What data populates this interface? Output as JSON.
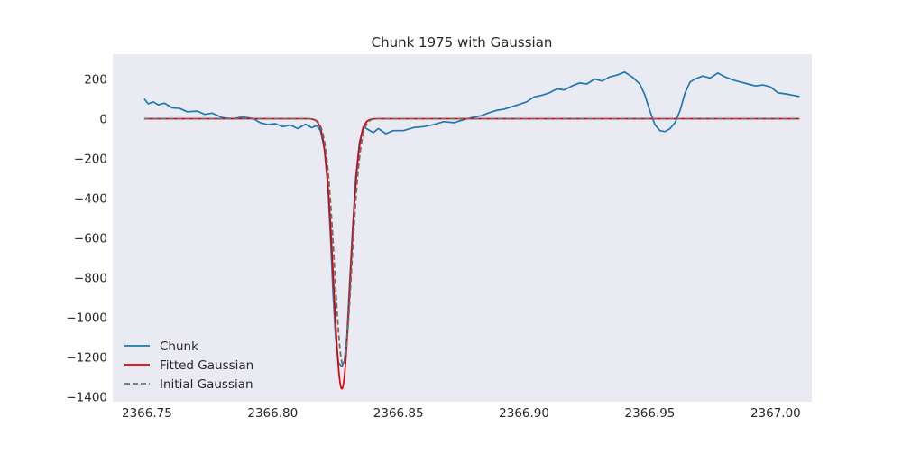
{
  "chart_data": {
    "type": "line",
    "title": "Chunk 1975 with Gaussian",
    "xlabel": "",
    "ylabel": "",
    "xlim": [
      2366.7364,
      2367.0144
    ],
    "ylim": [
      -1425,
      325
    ],
    "x_ticks": [
      2366.75,
      2366.8,
      2366.85,
      2366.9,
      2366.95,
      2367.0
    ],
    "x_tick_labels": [
      "2366.75",
      "2366.80",
      "2366.85",
      "2366.90",
      "2366.95",
      "2367.00"
    ],
    "y_ticks": [
      200,
      0,
      -200,
      -400,
      -600,
      -800,
      -1000,
      -1200,
      -1400
    ],
    "y_tick_labels": [
      "200",
      "0",
      "−200",
      "−400",
      "−600",
      "−800",
      "−1000",
      "−1200",
      "−1400"
    ],
    "grid": false,
    "legend_position": "lower-left",
    "colors": {
      "plot_background": "#eaeaf2",
      "chunk": "#1f77b4",
      "fitted": "#e00000",
      "initial": "#6f6f6f"
    },
    "series": [
      {
        "name": "Chunk",
        "style": "solid",
        "color": "#1f77b4",
        "points": [
          [
            2366.7489,
            100
          ],
          [
            2366.7505,
            75
          ],
          [
            2366.7525,
            85
          ],
          [
            2366.7545,
            70
          ],
          [
            2366.757,
            78
          ],
          [
            2366.76,
            55
          ],
          [
            2366.763,
            52
          ],
          [
            2366.766,
            35
          ],
          [
            2366.77,
            38
          ],
          [
            2366.773,
            22
          ],
          [
            2366.776,
            28
          ],
          [
            2366.78,
            5
          ],
          [
            2366.784,
            0
          ],
          [
            2366.788,
            8
          ],
          [
            2366.792,
            2
          ],
          [
            2366.795,
            -20
          ],
          [
            2366.798,
            -30
          ],
          [
            2366.801,
            -25
          ],
          [
            2366.804,
            -40
          ],
          [
            2366.807,
            -32
          ],
          [
            2366.81,
            -50
          ],
          [
            2366.813,
            -28
          ],
          [
            2366.8155,
            -45
          ],
          [
            2366.8175,
            -35
          ],
          [
            2366.819,
            -60
          ],
          [
            2366.8205,
            -150
          ],
          [
            2366.822,
            -350
          ],
          [
            2366.823,
            -600
          ],
          [
            2366.824,
            -880
          ],
          [
            2366.825,
            -1100
          ],
          [
            2366.8262,
            -1230
          ],
          [
            2366.8275,
            -1248
          ],
          [
            2366.8285,
            -1220
          ],
          [
            2366.8295,
            -1100
          ],
          [
            2366.8305,
            -850
          ],
          [
            2366.8318,
            -550
          ],
          [
            2366.833,
            -300
          ],
          [
            2366.8345,
            -120
          ],
          [
            2366.836,
            -40
          ],
          [
            2366.838,
            -55
          ],
          [
            2366.84,
            -70
          ],
          [
            2366.842,
            -50
          ],
          [
            2366.845,
            -75
          ],
          [
            2366.848,
            -60
          ],
          [
            2366.852,
            -60
          ],
          [
            2366.856,
            -45
          ],
          [
            2366.86,
            -40
          ],
          [
            2366.864,
            -30
          ],
          [
            2366.868,
            -15
          ],
          [
            2366.872,
            -20
          ],
          [
            2366.876,
            -5
          ],
          [
            2366.88,
            8
          ],
          [
            2366.883,
            15
          ],
          [
            2366.886,
            30
          ],
          [
            2366.889,
            42
          ],
          [
            2366.892,
            48
          ],
          [
            2366.895,
            60
          ],
          [
            2366.898,
            72
          ],
          [
            2366.901,
            85
          ],
          [
            2366.904,
            110
          ],
          [
            2366.907,
            118
          ],
          [
            2366.91,
            130
          ],
          [
            2366.913,
            150
          ],
          [
            2366.916,
            145
          ],
          [
            2366.919,
            165
          ],
          [
            2366.922,
            180
          ],
          [
            2366.925,
            175
          ],
          [
            2366.928,
            200
          ],
          [
            2366.931,
            190
          ],
          [
            2366.934,
            210
          ],
          [
            2366.937,
            220
          ],
          [
            2366.94,
            235
          ],
          [
            2366.943,
            210
          ],
          [
            2366.946,
            175
          ],
          [
            2366.948,
            120
          ],
          [
            2366.95,
            40
          ],
          [
            2366.952,
            -30
          ],
          [
            2366.954,
            -60
          ],
          [
            2366.956,
            -65
          ],
          [
            2366.958,
            -50
          ],
          [
            2366.96,
            -20
          ],
          [
            2366.962,
            40
          ],
          [
            2366.964,
            130
          ],
          [
            2366.966,
            185
          ],
          [
            2366.968,
            200
          ],
          [
            2366.971,
            215
          ],
          [
            2366.974,
            205
          ],
          [
            2366.977,
            230
          ],
          [
            2366.98,
            210
          ],
          [
            2366.983,
            195
          ],
          [
            2366.986,
            185
          ],
          [
            2366.989,
            175
          ],
          [
            2366.992,
            165
          ],
          [
            2366.995,
            170
          ],
          [
            2366.998,
            160
          ],
          [
            2367.001,
            130
          ],
          [
            2367.004,
            125
          ],
          [
            2367.007,
            118
          ],
          [
            2367.0095,
            112
          ]
        ]
      },
      {
        "name": "Fitted Gaussian",
        "style": "solid",
        "color": "#e00000",
        "amplitude": -1360,
        "center": 2366.8275,
        "sigma": 0.0033,
        "x_range": [
          2366.7489,
          2367.0095
        ]
      },
      {
        "name": "Initial Gaussian",
        "style": "dashed",
        "color": "#6f6f6f",
        "amplitude": -1240,
        "center": 2366.828,
        "sigma": 0.0034,
        "x_range": [
          2366.7489,
          2367.0095
        ]
      }
    ]
  }
}
